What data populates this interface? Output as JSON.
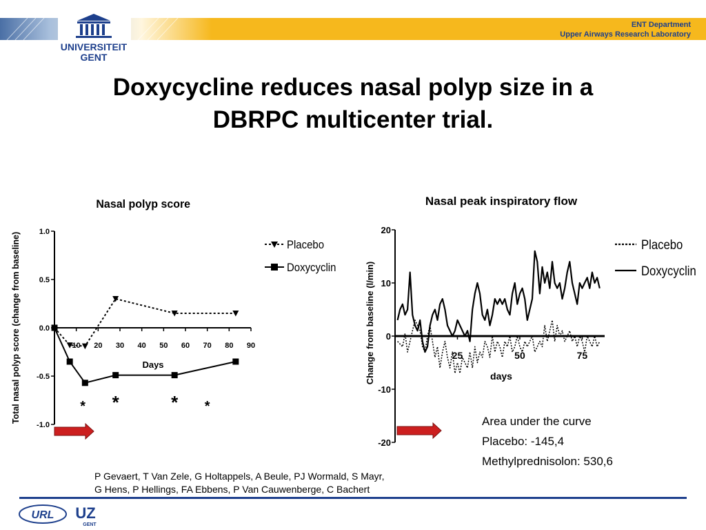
{
  "header": {
    "university_line1": "UNIVERSITEIT",
    "university_line2": "GENT",
    "department": "ENT Department",
    "laboratory": "Upper Airways Research Laboratory",
    "accent_color": "#f6b81d",
    "navy_color": "#1d3f8c"
  },
  "slide": {
    "title_line1": "Doxycycline reduces nasal polyp size in a",
    "title_line2": "DBRPC multicenter trial."
  },
  "chart_data": [
    {
      "type": "line",
      "title": "Nasal polyp score",
      "xlabel": "Days",
      "ylabel": "Total nasal polyp score (change from baseline)",
      "xlim": [
        0,
        90
      ],
      "ylim": [
        -1.0,
        1.0
      ],
      "xticks": [
        10,
        20,
        30,
        40,
        50,
        60,
        70,
        80,
        90
      ],
      "yticks": [
        1.0,
        0.5,
        0.0,
        -0.5,
        -1.0
      ],
      "ytick_labels": [
        "1.0",
        "0.5",
        "0.0",
        "-0.5",
        "-1.0"
      ],
      "legend": "right",
      "series": [
        {
          "name": "Placebo",
          "style": "dotted-triangle",
          "x": [
            0,
            7,
            14,
            28,
            55,
            83
          ],
          "y": [
            0.0,
            -0.18,
            -0.19,
            0.3,
            0.15,
            0.15
          ]
        },
        {
          "name": "Doxycyclin",
          "style": "solid-square",
          "x": [
            0,
            7,
            14,
            28,
            55,
            83
          ],
          "y": [
            0.0,
            -0.35,
            -0.57,
            -0.49,
            -0.49,
            -0.35
          ]
        }
      ],
      "significance": [
        {
          "x": 13,
          "label": "*"
        },
        {
          "x": 28,
          "label": "*"
        },
        {
          "x": 55,
          "label": "*"
        },
        {
          "x": 70,
          "label": "*"
        }
      ],
      "treatment_arrow_days": [
        0,
        20
      ],
      "arrow_color": "#cc1f1f"
    },
    {
      "type": "line",
      "title": "Nasal peak inspiratory flow",
      "xlabel": "days",
      "ylabel": "Change from baseline (l/min)",
      "xlim": [
        0,
        84
      ],
      "ylim": [
        -20,
        20
      ],
      "xticks": [
        25,
        50,
        75
      ],
      "yticks": [
        20,
        10,
        0,
        -10,
        -20
      ],
      "ytick_labels": [
        "20",
        "10",
        "0",
        "-10",
        "-20"
      ],
      "legend": "right",
      "series": [
        {
          "name": "Placebo",
          "style": "dotted",
          "x": [
            1,
            2,
            3,
            4,
            5,
            6,
            7,
            8,
            9,
            10,
            11,
            12,
            13,
            14,
            15,
            16,
            17,
            18,
            19,
            20,
            21,
            22,
            23,
            24,
            25,
            26,
            27,
            28,
            29,
            30,
            31,
            32,
            33,
            34,
            35,
            36,
            37,
            38,
            39,
            40,
            41,
            42,
            43,
            44,
            45,
            46,
            47,
            48,
            49,
            50,
            51,
            52,
            53,
            54,
            55,
            56,
            57,
            58,
            59,
            60,
            61,
            62,
            63,
            64,
            65,
            66,
            67,
            68,
            69,
            70,
            71,
            72,
            73,
            74,
            75,
            76,
            77,
            78,
            79,
            80,
            81,
            82
          ],
          "y": [
            -1,
            -1.5,
            -2,
            0.5,
            -3,
            -1,
            1,
            3,
            2,
            1,
            -2,
            -3,
            0,
            2,
            -1,
            -4,
            -2,
            -6,
            -3,
            -1,
            -4,
            -6,
            -3,
            -7,
            -5,
            -7,
            -4,
            -5,
            -6,
            -3,
            -6,
            -2,
            -5,
            -3,
            -4,
            -1,
            -2,
            -4,
            0,
            -3,
            -1,
            -2,
            -4,
            -1,
            -2,
            0,
            -3,
            -2,
            0,
            -2,
            -3,
            -1,
            -2,
            -1,
            0,
            -3,
            -2,
            -1,
            -2,
            2,
            -1,
            1,
            3,
            -1,
            2,
            0,
            1,
            -1,
            0,
            1,
            -1,
            0,
            -2,
            0,
            -1,
            -3,
            0,
            -1,
            -2,
            0,
            -2,
            -1
          ]
        },
        {
          "name": "Doxycyclin",
          "style": "solid",
          "x": [
            1,
            2,
            3,
            4,
            5,
            6,
            7,
            8,
            9,
            10,
            11,
            12,
            13,
            14,
            15,
            16,
            17,
            18,
            19,
            20,
            21,
            22,
            23,
            24,
            25,
            26,
            27,
            28,
            29,
            30,
            31,
            32,
            33,
            34,
            35,
            36,
            37,
            38,
            39,
            40,
            41,
            42,
            43,
            44,
            45,
            46,
            47,
            48,
            49,
            50,
            51,
            52,
            53,
            54,
            55,
            56,
            57,
            58,
            59,
            60,
            61,
            62,
            63,
            64,
            65,
            66,
            67,
            68,
            69,
            70,
            71,
            72,
            73,
            74,
            75,
            76,
            77,
            78,
            79,
            80,
            81,
            82
          ],
          "y": [
            3,
            5,
            6,
            4,
            5,
            12,
            4,
            2,
            1,
            3,
            -1,
            -3,
            -2,
            2,
            4,
            5,
            3,
            6,
            7,
            5,
            2,
            1,
            0,
            1,
            3,
            2,
            1,
            0,
            1,
            -1,
            5,
            8,
            10,
            8,
            4,
            3,
            5,
            2,
            4,
            7,
            6,
            7,
            6,
            7,
            5,
            4,
            8,
            10,
            6,
            8,
            9,
            7,
            3,
            5,
            7,
            16,
            14,
            8,
            13,
            10,
            12,
            9,
            14,
            10,
            9,
            10,
            7,
            9,
            12,
            14,
            10,
            8,
            6,
            10,
            9,
            10,
            11,
            9,
            12,
            10,
            11,
            9
          ]
        }
      ],
      "treatment_arrow_days": [
        0,
        20
      ],
      "arrow_color": "#cc1f1f"
    }
  ],
  "auc": {
    "heading": "Area under the curve",
    "placebo": "Placebo: -145,4",
    "steroid": "Methylprednisolon: 530,6"
  },
  "authors": {
    "line1": "P Gevaert, T Van Zele, G Holtappels, A Beule, PJ Wormald, S Mayr,",
    "line2": "G Hens, P Hellings, FA Ebbens, P Van Cauwenberge, C Bachert"
  },
  "footer": {
    "logo_left": "URL",
    "logo_right": "UZ",
    "logo_right_sub": "GENT"
  }
}
